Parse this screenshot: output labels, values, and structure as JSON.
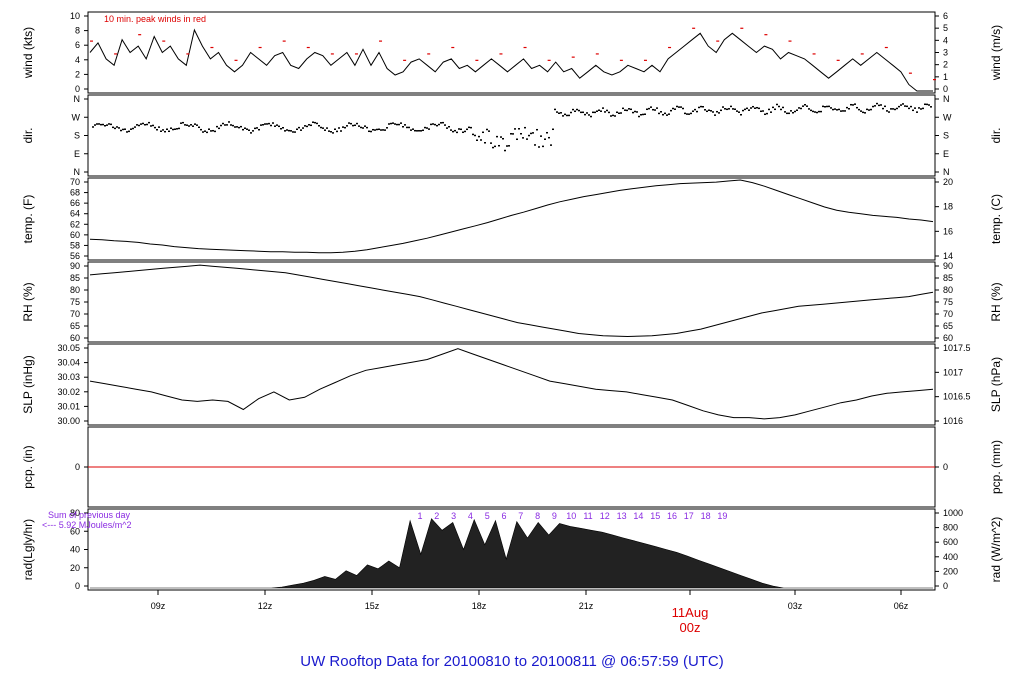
{
  "chart_data": {
    "type": "line",
    "title": "UW Rooftop Data for 20100810  to  20100811 @ 06:57:59  (UTC)",
    "x_ticks": [
      "09z",
      "12z",
      "15z",
      "18z",
      "21z",
      "",
      "03z",
      "06z"
    ],
    "date_label": "11Aug",
    "date_sub": "00z",
    "panels": [
      {
        "key": "wind",
        "ylabel_left": "wind (kts)",
        "ylabel_right": "wind (m/s)",
        "ylim": [
          0,
          12
        ],
        "left_ticks": [
          "0",
          "2",
          "4",
          "6",
          "8",
          "10"
        ],
        "right_ticks": [
          "0",
          "1",
          "2",
          "3",
          "4",
          "5",
          "6"
        ],
        "annotation": "10 min. peak winds in red",
        "series": [
          {
            "values": [
              6,
              7.5,
              5,
              4,
              8,
              6,
              7,
              5,
              8.5,
              6,
              7,
              5,
              4,
              9.5,
              7,
              5,
              6,
              4,
              3,
              4,
              6,
              5,
              4,
              5.5,
              6,
              4,
              3.5,
              5,
              6,
              5.5,
              4,
              5,
              6,
              4,
              6.5,
              4,
              6,
              3.5,
              2.5,
              3,
              4.5,
              5,
              4,
              3,
              4.5,
              5,
              3.5,
              4,
              3,
              4,
              5,
              4,
              3,
              4,
              5,
              3.5,
              4,
              3,
              4.5,
              3,
              3.5,
              2,
              3,
              4,
              3,
              2.5,
              3,
              4,
              3.5,
              3,
              4,
              3,
              5,
              6,
              7,
              8,
              9,
              7,
              6,
              8,
              9,
              8,
              7,
              6,
              7,
              6.5,
              5,
              6,
              5.5,
              5,
              4,
              3,
              2,
              3,
              4,
              5,
              4,
              5,
              6,
              5,
              4,
              3,
              1,
              0,
              0,
              0
            ]
          }
        ]
      },
      {
        "key": "dir",
        "ylabel_left": "dir.",
        "ylabel_right": "dir.",
        "left_ticks": [
          "N",
          "E",
          "S",
          "W",
          "N"
        ],
        "right_ticks": [
          "N",
          "E",
          "S",
          "W",
          "N"
        ]
      },
      {
        "key": "temp",
        "ylabel_left": "temp. (F)",
        "ylabel_right": "temp. (C)",
        "ylim": [
          55,
          70
        ],
        "left_ticks": [
          "56",
          "58",
          "60",
          "62",
          "64",
          "66",
          "68",
          "70"
        ],
        "right_ticks": [
          "14",
          "16",
          "18",
          "20"
        ],
        "series": [
          {
            "values": [
              58.6,
              58.5,
              58.3,
              58.2,
              58,
              57.7,
              57.5,
              57.2,
              57,
              56.8,
              56.7,
              56.6,
              56.5,
              56.4,
              56.3,
              56.2,
              56.2,
              56.1,
              56.1,
              56,
              56,
              56.1,
              56.3,
              56.6,
              57,
              57.4,
              57.8,
              58.3,
              58.8,
              59.4,
              60,
              60.6,
              61.2,
              61.8,
              62.5,
              63.2,
              63.8,
              64.5,
              65.2,
              65.8,
              66.3,
              66.8,
              67.2,
              67.6,
              68,
              68.3,
              68.6,
              68.9,
              69.1,
              69.3,
              69.4,
              69.5,
              69.6,
              69.8,
              70,
              69.5,
              68.8,
              68,
              67.2,
              66.4,
              65.6,
              64.8,
              64.2,
              63.8,
              63.5,
              63.2,
              63,
              62.8,
              62.5,
              62.3,
              62
            ]
          }
        ]
      },
      {
        "key": "rh",
        "ylabel_left": "RH (%)",
        "ylabel_right": "RH (%)",
        "ylim": [
          57,
          92
        ],
        "left_ticks": [
          "60",
          "65",
          "70",
          "75",
          "80",
          "85",
          "90"
        ],
        "right_ticks": [
          "60",
          "65",
          "70",
          "75",
          "80",
          "85",
          "90"
        ],
        "series": [
          {
            "values": [
              87,
              87.5,
              88,
              88.5,
              89,
              89.5,
              90,
              90.5,
              91,
              91.5,
              91,
              90.5,
              90,
              89.5,
              89,
              88.5,
              88,
              87,
              86,
              85,
              84,
              83,
              82,
              81,
              80,
              79,
              78,
              77,
              75.5,
              74,
              72.5,
              71,
              69.5,
              68,
              66.5,
              65,
              64,
              63,
              62,
              61,
              60,
              59.5,
              59,
              58.8,
              58.6,
              58.8,
              59,
              59.5,
              60,
              61,
              62,
              63.5,
              65,
              66.5,
              68,
              69.5,
              70.5,
              71.5,
              72.5,
              73,
              73.5,
              74,
              74.5,
              75,
              75.5,
              76,
              76.5,
              77,
              78,
              79
            ]
          }
        ]
      },
      {
        "key": "slp",
        "ylabel_left": "SLP (inHg)",
        "ylabel_right": "SLP (hPa)",
        "ylim": [
          29.995,
          30.052
        ],
        "left_ticks": [
          "30.00",
          "30.01",
          "30.02",
          "30.03",
          "30.04",
          "30.05"
        ],
        "right_ticks": [
          "1016",
          "1016.5",
          "1017",
          "1017.5"
        ],
        "series": [
          {
            "values": [
              30.026,
              30.024,
              30.022,
              30.02,
              30.018,
              30.015,
              30.012,
              30.011,
              30.012,
              30.011,
              30.005,
              30.013,
              30.018,
              30.012,
              30.014,
              30.02,
              30.025,
              30.03,
              30.034,
              30.036,
              30.038,
              30.04,
              30.042,
              30.046,
              30.05,
              30.046,
              30.042,
              30.038,
              30.034,
              30.03,
              30.026,
              30.024,
              30.022,
              30.02,
              30.019,
              30.018,
              30.016,
              30.014,
              30.012,
              30.008,
              30.004,
              30.001,
              29.999,
              29.999,
              29.998,
              29.999,
              30.001,
              30.004,
              30.007,
              30.01,
              30.012,
              30.015,
              30.017,
              30.018,
              30.019,
              30.02
            ]
          }
        ]
      },
      {
        "key": "pcp",
        "ylabel_left": "pcp. (in)",
        "ylabel_right": "pcp. (mm)",
        "left_ticks": [
          "0"
        ],
        "right_ticks": [
          "0"
        ]
      },
      {
        "key": "rad",
        "ylabel_left": "rad(Lgly/hr)",
        "ylabel_right": "rad (W/m^2)",
        "ylim": [
          0,
          80
        ],
        "left_ticks": [
          "0",
          "20",
          "40",
          "60",
          "80"
        ],
        "right_ticks": [
          "0",
          "200",
          "400",
          "600",
          "800",
          "1000"
        ],
        "legend_line1": "Sum of previous day",
        "legend_line2": "<--- 5.92 MJoules/m^2",
        "hour_marks": [
          "1",
          "2",
          "3",
          "4",
          "5",
          "6",
          "7",
          "8",
          "9",
          "10",
          "11",
          "12",
          "13",
          "14",
          "15",
          "16",
          "17",
          "18",
          "19"
        ],
        "series": [
          {
            "values": [
              0,
              0,
              0,
              0,
              0,
              0,
              0,
              0,
              0,
              0,
              0,
              0,
              0,
              0,
              0,
              0,
              0,
              0,
              1,
              3,
              5,
              8,
              12,
              9,
              18,
              13,
              24,
              20,
              28,
              21,
              70,
              35,
              72,
              60,
              68,
              40,
              71,
              45,
              70,
              30,
              69,
              52,
              68,
              55,
              67,
              64,
              62,
              60,
              58,
              55,
              52,
              49,
              46,
              43,
              40,
              37,
              33,
              29,
              25,
              21,
              17,
              13,
              9,
              5,
              2,
              0,
              0,
              0,
              0,
              0,
              0,
              0,
              0,
              0,
              0,
              0,
              0,
              0,
              0,
              0
            ]
          }
        ]
      }
    ]
  }
}
